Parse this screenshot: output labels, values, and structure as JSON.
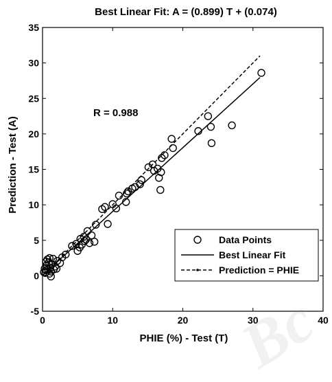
{
  "chart_data": {
    "type": "scatter",
    "title": "Best Linear Fit: A = (0.899) T + (0.074)",
    "xlabel": "PHIE (%) - Test (T)",
    "ylabel": "Prediction - Test (A)",
    "xlim": [
      0,
      40
    ],
    "ylim": [
      -5,
      35
    ],
    "xticks": [
      0,
      10,
      20,
      30,
      40
    ],
    "yticks": [
      -5,
      0,
      5,
      10,
      15,
      20,
      25,
      30,
      35
    ],
    "annotation": "R = 0.988",
    "fit": {
      "slope": 0.899,
      "intercept": 0.074,
      "x_range": [
        0,
        31
      ]
    },
    "identity": {
      "x_range": [
        0,
        31
      ]
    },
    "legend": {
      "position": "bottom-right",
      "entries": [
        "Data Points",
        "Best Linear Fit",
        "Prediction = PHIE"
      ]
    },
    "series": [
      {
        "name": "Data Points",
        "points": [
          [
            0.2,
            0.5
          ],
          [
            0.3,
            1.0
          ],
          [
            0.4,
            0.4
          ],
          [
            0.5,
            2.0
          ],
          [
            0.5,
            0.8
          ],
          [
            0.6,
            1.5
          ],
          [
            0.7,
            2.3
          ],
          [
            0.8,
            0.9
          ],
          [
            0.9,
            1.9
          ],
          [
            1.0,
            0.3
          ],
          [
            1.0,
            2.5
          ],
          [
            1.1,
            1.1
          ],
          [
            1.2,
            0.6
          ],
          [
            1.2,
            -0.1
          ],
          [
            1.3,
            1.6
          ],
          [
            1.5,
            2.4
          ],
          [
            1.6,
            0.9
          ],
          [
            1.8,
            1.3
          ],
          [
            2.0,
            1.0
          ],
          [
            2.1,
            2.1
          ],
          [
            2.5,
            1.8
          ],
          [
            2.8,
            2.6
          ],
          [
            3.3,
            3.0
          ],
          [
            4.2,
            4.2
          ],
          [
            4.8,
            4.5
          ],
          [
            5.0,
            3.5
          ],
          [
            5.3,
            4.0
          ],
          [
            5.4,
            5.2
          ],
          [
            5.6,
            4.4
          ],
          [
            5.9,
            5.5
          ],
          [
            6.0,
            4.9
          ],
          [
            6.2,
            5.1
          ],
          [
            6.4,
            6.3
          ],
          [
            6.7,
            4.6
          ],
          [
            7.0,
            5.7
          ],
          [
            7.4,
            4.8
          ],
          [
            7.6,
            7.2
          ],
          [
            8.5,
            9.4
          ],
          [
            8.9,
            9.7
          ],
          [
            9.3,
            7.3
          ],
          [
            10.0,
            10.1
          ],
          [
            10.5,
            9.5
          ],
          [
            10.9,
            11.3
          ],
          [
            11.9,
            10.4
          ],
          [
            12.0,
            11.6
          ],
          [
            12.2,
            11.9
          ],
          [
            12.8,
            12.3
          ],
          [
            13.2,
            12.5
          ],
          [
            13.9,
            12.9
          ],
          [
            14.1,
            13.5
          ],
          [
            15.1,
            15.3
          ],
          [
            15.7,
            15.7
          ],
          [
            15.9,
            14.8
          ],
          [
            16.4,
            15.1
          ],
          [
            16.6,
            13.8
          ],
          [
            16.8,
            12.1
          ],
          [
            16.9,
            14.6
          ],
          [
            17.0,
            16.6
          ],
          [
            17.4,
            17.0
          ],
          [
            18.4,
            19.3
          ],
          [
            18.6,
            18.0
          ],
          [
            22.2,
            20.4
          ],
          [
            23.6,
            22.5
          ],
          [
            24.0,
            21.0
          ],
          [
            24.1,
            18.7
          ],
          [
            27.0,
            21.2
          ],
          [
            31.2,
            28.6
          ]
        ]
      }
    ]
  },
  "watermark": "Bc"
}
